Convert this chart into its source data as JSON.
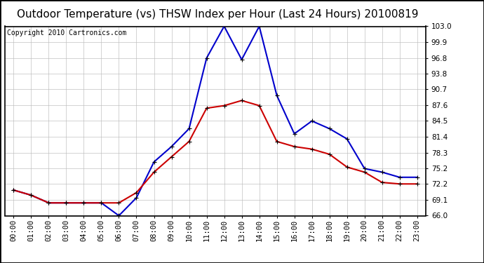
{
  "title": "Outdoor Temperature (vs) THSW Index per Hour (Last 24 Hours) 20100819",
  "copyright": "Copyright 2010 Cartronics.com",
  "hours": [
    "00:00",
    "01:00",
    "02:00",
    "03:00",
    "04:00",
    "05:00",
    "06:00",
    "07:00",
    "08:00",
    "09:00",
    "10:00",
    "11:00",
    "12:00",
    "13:00",
    "14:00",
    "15:00",
    "16:00",
    "17:00",
    "18:00",
    "19:00",
    "20:00",
    "21:00",
    "22:00",
    "23:00"
  ],
  "temp": [
    71.0,
    70.0,
    68.5,
    68.5,
    68.5,
    68.5,
    68.5,
    70.5,
    74.5,
    77.5,
    80.5,
    87.0,
    87.5,
    88.5,
    87.5,
    80.5,
    79.5,
    79.0,
    78.0,
    75.5,
    74.5,
    72.5,
    72.2,
    72.2
  ],
  "thsw": [
    71.0,
    70.0,
    68.5,
    68.5,
    68.5,
    68.5,
    66.0,
    69.5,
    76.5,
    79.5,
    83.0,
    96.8,
    103.0,
    96.5,
    103.0,
    89.5,
    82.0,
    84.5,
    83.0,
    81.0,
    75.2,
    74.5,
    73.5,
    73.5
  ],
  "temp_color": "#cc0000",
  "thsw_color": "#0000cc",
  "marker": "+",
  "markersize": 5,
  "linewidth": 1.5,
  "ylim": [
    66.0,
    103.0
  ],
  "yticks": [
    66.0,
    69.1,
    72.2,
    75.2,
    78.3,
    81.4,
    84.5,
    87.6,
    90.7,
    93.8,
    96.8,
    99.9,
    103.0
  ],
  "background_color": "#ffffff",
  "grid_color": "#bbbbbb",
  "title_fontsize": 11,
  "copyright_fontsize": 7,
  "tick_fontsize": 7.5
}
